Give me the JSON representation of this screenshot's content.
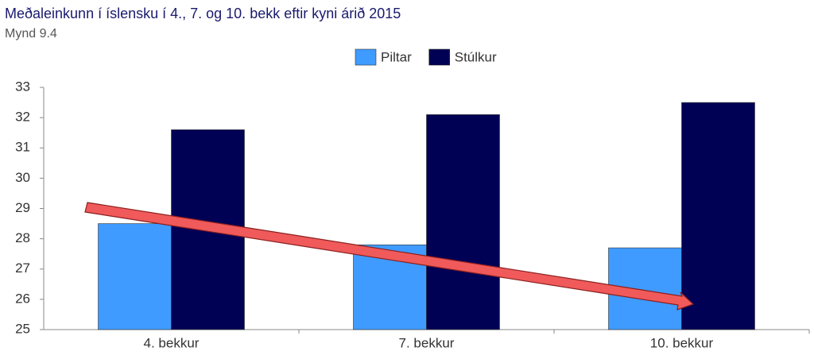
{
  "chart_data": {
    "type": "bar",
    "title": "Meðaleinkunn í íslensku í 4., 7. og 10. bekk eftir kyni árið 2015",
    "subtitle": "Mynd 9.4",
    "categories": [
      "4. bekkur",
      "7. bekkur",
      "10. bekkur"
    ],
    "series": [
      {
        "name": "Piltar",
        "color": "#3f9bff",
        "values": [
          28.5,
          27.8,
          27.7
        ]
      },
      {
        "name": "Stúlkur",
        "color": "#000055",
        "values": [
          31.6,
          32.1,
          32.5
        ]
      }
    ],
    "ylim": [
      25,
      33
    ],
    "yticks": [
      25,
      26,
      27,
      28,
      29,
      30,
      31,
      32,
      33
    ],
    "grid": false,
    "legend": "top"
  }
}
